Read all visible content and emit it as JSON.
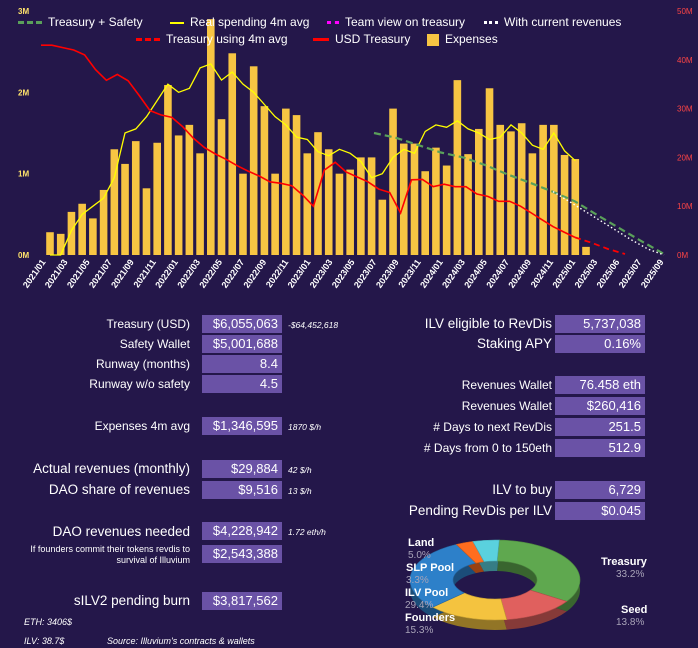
{
  "chart_data": [
    {
      "type": "bar",
      "legend": [
        {
          "label": "Treasury + Safety",
          "color": "#5aa05a",
          "style": "dashed"
        },
        {
          "label": "Real spending 4m avg",
          "color": "#ffff00",
          "style": "line"
        },
        {
          "label": "Team view on treasury",
          "color": "#ff00ff",
          "style": "dotted"
        },
        {
          "label": "With current revenues",
          "color": "#ffffff",
          "style": "dotted"
        },
        {
          "label": "Treasury using 4m avg",
          "color": "#ff0000",
          "style": "dashed"
        },
        {
          "label": "USD Treasury",
          "color": "#ff0000",
          "style": "line"
        },
        {
          "label": "Expenses",
          "color": "#f7c543",
          "style": "bar"
        }
      ],
      "y_left_ticks": [
        "0M",
        "1M",
        "2M",
        "3M"
      ],
      "y_left_range": [
        0,
        3
      ],
      "y_right_ticks": [
        "0M",
        "10M",
        "20M",
        "30M",
        "40M",
        "50M"
      ],
      "y_right_range": [
        0,
        50
      ],
      "x_tick_labels": [
        "2021/01",
        "2021/03",
        "2021/05",
        "2021/07",
        "2021/09",
        "2021/11",
        "2022/01",
        "2022/03",
        "2022/05",
        "2022/07",
        "2022/09",
        "2022/11",
        "2023/01",
        "2023/03",
        "2023/05",
        "2023/07",
        "2023/09",
        "2023/11",
        "2024/01",
        "2024/03",
        "2024/05",
        "2024/07",
        "2024/09",
        "2024/11",
        "2025/01",
        "2025/03",
        "2025/06",
        "2025/07",
        "2025/09"
      ],
      "expenses_M": [
        0.28,
        0.26,
        0.53,
        0.63,
        0.45,
        0.8,
        1.3,
        1.12,
        1.4,
        0.82,
        1.38,
        2.09,
        1.47,
        1.6,
        1.25,
        2.9,
        1.67,
        2.48,
        1.0,
        2.32,
        1.83,
        1.0,
        1.8,
        1.72,
        1.25,
        1.51,
        1.3,
        1.0,
        1.05,
        1.2,
        1.2,
        0.68,
        1.8,
        1.37,
        1.37,
        1.03,
        1.32,
        1.1,
        2.15,
        1.24,
        1.55,
        2.05,
        1.6,
        1.52,
        1.62,
        1.25,
        1.6,
        1.6,
        1.23,
        1.18,
        0.1
      ],
      "usd_treasury_M": [
        43,
        43,
        42.5,
        42,
        41,
        38,
        35.8,
        37,
        35.7,
        32.7,
        29.6,
        28.7,
        28.2,
        26.3,
        23.9,
        22,
        20.7,
        19.6,
        18.3,
        17.2,
        16.2,
        15,
        14.7,
        14.2,
        12.3,
        10,
        17.4,
        19,
        17,
        16,
        15,
        13.5,
        12.8,
        8.6,
        15.4,
        15.5,
        14,
        14.5,
        14,
        14,
        12.5,
        12,
        11,
        11,
        10,
        8.6,
        7.2,
        5.8,
        4.7,
        3.6
      ],
      "real_spending_4m_avg_M": [
        0,
        0,
        0.3,
        0.5,
        0.6,
        0.7,
        0.95,
        1.5,
        1.55,
        1.7,
        1.9,
        2.1,
        2.0,
        2.05,
        2.3,
        2.35,
        2.15,
        2.25,
        2.1,
        2.0,
        1.85,
        1.7,
        1.6,
        1.45,
        1.42,
        1.27,
        1.22,
        1.3,
        1.25,
        1.15,
        0.95,
        1.0,
        1.2,
        1.3,
        1.25,
        1.52,
        1.6,
        1.57,
        1.65,
        1.55,
        1.5,
        1.42,
        1.45,
        1.6,
        1.5,
        1.35,
        1.3,
        1.5,
        1.28,
        1.16
      ],
      "treasury_plus_safety_M": [
        25,
        24,
        22.5,
        21,
        20,
        18.4,
        16.5,
        14.8,
        13,
        11,
        8.2,
        5.5,
        2.8,
        0.2
      ],
      "treasury_using_4m_avg_M": [
        3.6,
        2.5,
        1.2,
        0.2
      ],
      "with_current_revenues_M": [
        13,
        11,
        9,
        7,
        5,
        3,
        1.2,
        0
      ]
    },
    {
      "type": "pie",
      "slices": [
        {
          "label": "Treasury",
          "value": 33.2,
          "pct": "33.2%",
          "color": "#5fa84f"
        },
        {
          "label": "Seed",
          "value": 13.8,
          "pct": "13.8%",
          "color": "#e0605e"
        },
        {
          "label": "Founders",
          "value": 15.3,
          "pct": "15.3%",
          "color": "#f4c33f"
        },
        {
          "label": "ILV Pool",
          "value": 29.4,
          "pct": "29.4%",
          "color": "#2d80c9"
        },
        {
          "label": "SLP Pool",
          "value": 3.3,
          "pct": "3.3%",
          "color": "#ff6d1f"
        },
        {
          "label": "Land",
          "value": 5.0,
          "pct": "5.0%",
          "color": "#5ad1de"
        }
      ]
    }
  ],
  "left_rows": [
    {
      "label": "Treasury (USD)",
      "value": "$6,055,063",
      "note": "-$64,452,618"
    },
    {
      "label": "Safety Wallet",
      "value": "$5,001,688",
      "note": ""
    },
    {
      "label": "Runway (months)",
      "value": "8.4",
      "note": ""
    },
    {
      "label": "Runway w/o safety",
      "value": "4.5",
      "note": ""
    },
    {
      "label": "Expenses 4m avg",
      "value": "$1,346,595",
      "note": "1870 $/h"
    },
    {
      "label": "Actual revenues (monthly)",
      "value": "$29,884",
      "note": "42 $/h"
    },
    {
      "label": "DAO share of revenues",
      "value": "$9,516",
      "note": "13 $/h"
    },
    {
      "label": "DAO revenues needed",
      "value": "$4,228,942",
      "note": "1.72 eth/h"
    },
    {
      "label": "If founders commit their tokens revdis to survival of Illuvium",
      "value": "$2,543,388",
      "note": ""
    },
    {
      "label": "sILV2 pending burn",
      "value": "$3,817,562",
      "note": ""
    }
  ],
  "right_rows": [
    {
      "label": "ILV eligible to RevDis",
      "value": "5,737,038"
    },
    {
      "label": "Staking APY",
      "value": "0.16%"
    },
    {
      "label": "Revenues Wallet",
      "value": "76.458 eth"
    },
    {
      "label": "Revenues Wallet",
      "value": "$260,416"
    },
    {
      "label": "# Days to next RevDis",
      "value": "251.5"
    },
    {
      "label": "# Days from 0 to 150eth",
      "value": "512.9"
    },
    {
      "label": "ILV to buy",
      "value": "6,729"
    },
    {
      "label": "Pending RevDis per ILV",
      "value": "$0.045"
    }
  ],
  "footer": {
    "eth": "ETH: 3406$",
    "ilv": "ILV: 38.7$",
    "source": "Source: Illuvium's contracts & wallets"
  }
}
